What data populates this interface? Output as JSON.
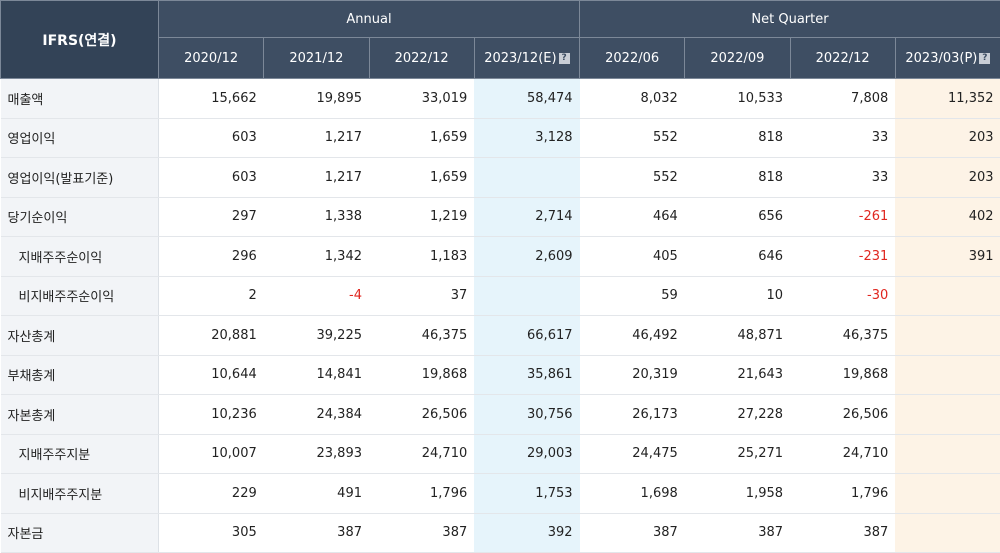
{
  "header": {
    "corner_label": "IFRS(연결)",
    "groups": {
      "annual": "Annual",
      "quarter": "Net Quarter"
    },
    "columns": [
      "2020/12",
      "2021/12",
      "2022/12",
      "2023/12(E)",
      "2022/06",
      "2022/09",
      "2022/12",
      "2023/03(P)"
    ]
  },
  "rows": [
    {
      "label": "매출액",
      "indent": false,
      "values": [
        "15,662",
        "19,895",
        "33,019",
        "58,474",
        "8,032",
        "10,533",
        "7,808",
        "11,352"
      ]
    },
    {
      "label": "영업이익",
      "indent": false,
      "values": [
        "603",
        "1,217",
        "1,659",
        "3,128",
        "552",
        "818",
        "33",
        "203"
      ]
    },
    {
      "label": "영업이익(발표기준)",
      "indent": false,
      "values": [
        "603",
        "1,217",
        "1,659",
        "",
        "552",
        "818",
        "33",
        "203"
      ]
    },
    {
      "label": "당기순이익",
      "indent": false,
      "values": [
        "297",
        "1,338",
        "1,219",
        "2,714",
        "464",
        "656",
        "-261",
        "402"
      ]
    },
    {
      "label": "지배주주순이익",
      "indent": true,
      "values": [
        "296",
        "1,342",
        "1,183",
        "2,609",
        "405",
        "646",
        "-231",
        "391"
      ]
    },
    {
      "label": "비지배주주순이익",
      "indent": true,
      "values": [
        "2",
        "-4",
        "37",
        "",
        "59",
        "10",
        "-30",
        ""
      ]
    },
    {
      "label": "자산총계",
      "indent": false,
      "values": [
        "20,881",
        "39,225",
        "46,375",
        "66,617",
        "46,492",
        "48,871",
        "46,375",
        ""
      ]
    },
    {
      "label": "부채총계",
      "indent": false,
      "values": [
        "10,644",
        "14,841",
        "19,868",
        "35,861",
        "20,319",
        "21,643",
        "19,868",
        ""
      ]
    },
    {
      "label": "자본총계",
      "indent": false,
      "values": [
        "10,236",
        "24,384",
        "26,506",
        "30,756",
        "26,173",
        "27,228",
        "26,506",
        ""
      ]
    },
    {
      "label": "지배주주지분",
      "indent": true,
      "values": [
        "10,007",
        "23,893",
        "24,710",
        "29,003",
        "24,475",
        "25,271",
        "24,710",
        ""
      ]
    },
    {
      "label": "비지배주주지분",
      "indent": true,
      "values": [
        "229",
        "491",
        "1,796",
        "1,753",
        "1,698",
        "1,958",
        "1,796",
        ""
      ]
    },
    {
      "label": "자본금",
      "indent": false,
      "values": [
        "305",
        "387",
        "387",
        "392",
        "387",
        "387",
        "387",
        ""
      ]
    }
  ]
}
